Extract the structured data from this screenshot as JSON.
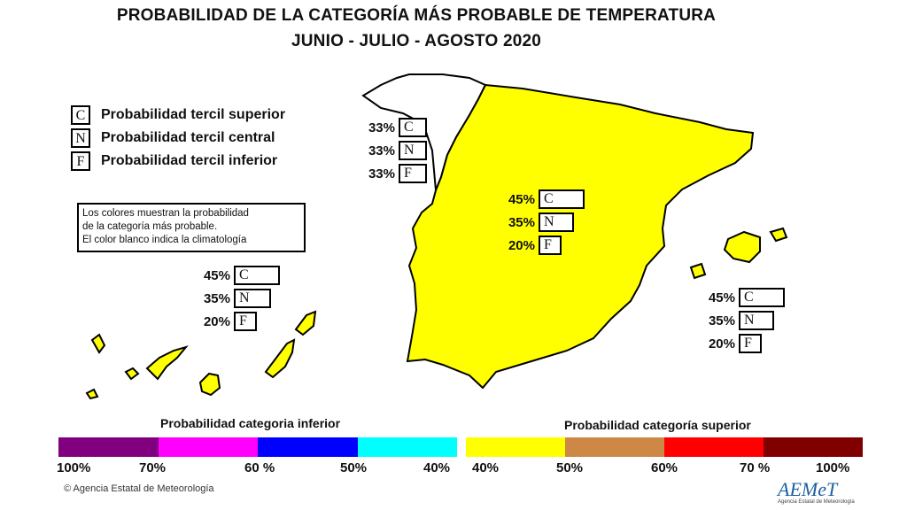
{
  "title": {
    "line1": "PROBABILIDAD DE LA CATEGORÍA MÁS PROBABLE DE  TEMPERATURA",
    "line2": "JUNIO - JULIO - AGOSTO 2020"
  },
  "legend": [
    {
      "letter": "C",
      "text": "Probabilidad  tercil superior"
    },
    {
      "letter": "N",
      "text": "Probabilidad  tercil central"
    },
    {
      "letter": "F",
      "text": "Probabilidad  tercil inferior"
    }
  ],
  "note": {
    "line1": "Los colores muestran la probabilidad",
    "line2": "de la categoría más probable.",
    "line3": "El color blanco indica la climatología"
  },
  "regions": {
    "galicia": {
      "C": "33%",
      "N": "33%",
      "F": "33%",
      "color": "#ffffff"
    },
    "peninsula": {
      "C": "45%",
      "N": "35%",
      "F": "20%",
      "color": "#ffff00"
    },
    "canarias": {
      "C": "45%",
      "N": "35%",
      "F": "20%",
      "color": "#ffff00"
    },
    "baleares": {
      "C": "45%",
      "N": "35%",
      "F": "20%",
      "color": "#ffff00"
    }
  },
  "scale": {
    "lower_title": "Probabilidad categoria inferior",
    "upper_title": "Probabilidad categoría superior",
    "lower_colors": [
      "#800080",
      "#ff00ff",
      "#0000ff",
      "#00ffff"
    ],
    "upper_colors": [
      "#ffff00",
      "#cc8844",
      "#ff0000",
      "#800000"
    ],
    "lower_ticks": [
      "100%",
      "70%",
      "60 %",
      "50%",
      "40%"
    ],
    "upper_ticks": [
      "40%",
      "50%",
      "60%",
      "70 %",
      "100%"
    ]
  },
  "footer": {
    "copyright": "©  Agencia Estatal de Meteorología",
    "logo": "AEMeT",
    "logo_sub": "Agencia Estatal de Meteorología"
  }
}
